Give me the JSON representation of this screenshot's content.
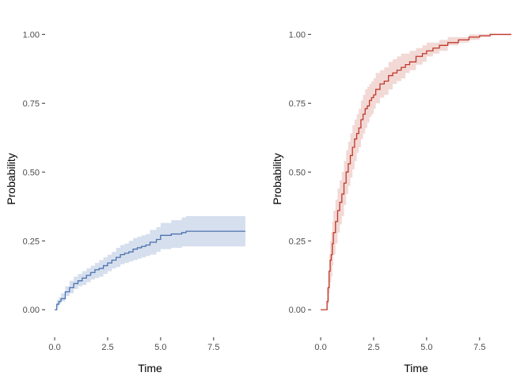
{
  "chart_data": [
    {
      "type": "line",
      "xlabel": "Time",
      "ylabel": "Probability",
      "xlim": [
        -0.45,
        9.45
      ],
      "ylim": [
        -0.1,
        1.05
      ],
      "x_ticks": [
        0.0,
        2.5,
        5.0,
        7.5
      ],
      "x_tick_labels": [
        "0.0",
        "2.5",
        "5.0",
        "7.5"
      ],
      "y_ticks": [
        0.0,
        0.25,
        0.5,
        0.75,
        1.0
      ],
      "y_tick_labels": [
        "0.00",
        "0.25",
        "0.50",
        "0.75",
        "1.00"
      ],
      "grid": false,
      "series": [
        {
          "color": "#4c72b0",
          "band_color": "#d6dfed",
          "step": true,
          "x": [
            0.0,
            0.1,
            0.2,
            0.3,
            0.5,
            0.7,
            0.9,
            1.1,
            1.3,
            1.5,
            1.7,
            1.9,
            2.1,
            2.3,
            2.5,
            2.7,
            2.9,
            3.1,
            3.3,
            3.5,
            3.7,
            3.9,
            4.1,
            4.3,
            4.5,
            4.8,
            5.0,
            5.5,
            6.0,
            6.2,
            9.0
          ],
          "y": [
            0.0,
            0.02,
            0.03,
            0.04,
            0.065,
            0.08,
            0.095,
            0.105,
            0.115,
            0.125,
            0.135,
            0.145,
            0.15,
            0.16,
            0.17,
            0.18,
            0.19,
            0.2,
            0.205,
            0.21,
            0.22,
            0.225,
            0.23,
            0.235,
            0.245,
            0.255,
            0.27,
            0.275,
            0.28,
            0.285,
            0.285
          ],
          "lower": [
            0.0,
            0.01,
            0.02,
            0.03,
            0.05,
            0.06,
            0.075,
            0.085,
            0.09,
            0.1,
            0.11,
            0.115,
            0.12,
            0.13,
            0.14,
            0.15,
            0.155,
            0.165,
            0.17,
            0.175,
            0.18,
            0.185,
            0.19,
            0.195,
            0.2,
            0.21,
            0.22,
            0.225,
            0.23,
            0.23,
            0.23
          ],
          "upper": [
            0.0,
            0.035,
            0.045,
            0.06,
            0.085,
            0.105,
            0.12,
            0.13,
            0.14,
            0.15,
            0.16,
            0.17,
            0.18,
            0.19,
            0.2,
            0.21,
            0.225,
            0.235,
            0.24,
            0.25,
            0.26,
            0.265,
            0.27,
            0.275,
            0.29,
            0.3,
            0.315,
            0.325,
            0.335,
            0.34,
            0.34
          ]
        }
      ]
    },
    {
      "type": "line",
      "xlabel": "Time",
      "ylabel": "Probability",
      "xlim": [
        -0.45,
        9.45
      ],
      "ylim": [
        -0.1,
        1.05
      ],
      "x_ticks": [
        0.0,
        2.5,
        5.0,
        7.5
      ],
      "x_tick_labels": [
        "0.0",
        "2.5",
        "5.0",
        "7.5"
      ],
      "y_ticks": [
        0.0,
        0.25,
        0.5,
        0.75,
        1.0
      ],
      "y_tick_labels": [
        "0.00",
        "0.25",
        "0.50",
        "0.75",
        "1.00"
      ],
      "grid": false,
      "series": [
        {
          "color": "#c0392b",
          "band_color": "#f2d9d6",
          "step": true,
          "x": [
            0.0,
            0.3,
            0.35,
            0.4,
            0.45,
            0.5,
            0.55,
            0.6,
            0.7,
            0.8,
            0.9,
            1.0,
            1.1,
            1.2,
            1.3,
            1.4,
            1.5,
            1.6,
            1.7,
            1.8,
            1.9,
            2.0,
            2.1,
            2.2,
            2.3,
            2.4,
            2.5,
            2.6,
            2.8,
            3.0,
            3.2,
            3.4,
            3.6,
            3.8,
            4.0,
            4.2,
            4.5,
            4.8,
            5.0,
            5.3,
            5.6,
            6.0,
            6.5,
            7.0,
            7.5,
            8.0,
            9.0
          ],
          "y": [
            0.0,
            0.03,
            0.08,
            0.14,
            0.18,
            0.2,
            0.24,
            0.28,
            0.32,
            0.36,
            0.39,
            0.42,
            0.46,
            0.5,
            0.53,
            0.56,
            0.59,
            0.62,
            0.64,
            0.66,
            0.69,
            0.71,
            0.73,
            0.74,
            0.76,
            0.77,
            0.78,
            0.8,
            0.82,
            0.83,
            0.85,
            0.86,
            0.87,
            0.88,
            0.89,
            0.9,
            0.92,
            0.93,
            0.94,
            0.95,
            0.96,
            0.97,
            0.98,
            0.99,
            0.995,
            1.0,
            1.0
          ],
          "lower": [
            0.0,
            0.0,
            0.02,
            0.06,
            0.1,
            0.12,
            0.16,
            0.2,
            0.24,
            0.28,
            0.31,
            0.34,
            0.38,
            0.42,
            0.45,
            0.48,
            0.51,
            0.54,
            0.57,
            0.59,
            0.62,
            0.64,
            0.66,
            0.68,
            0.7,
            0.71,
            0.73,
            0.75,
            0.77,
            0.78,
            0.8,
            0.82,
            0.83,
            0.84,
            0.86,
            0.87,
            0.89,
            0.9,
            0.92,
            0.93,
            0.94,
            0.96,
            0.97,
            0.98,
            0.99,
            0.995,
            1.0
          ],
          "upper": [
            0.0,
            0.08,
            0.14,
            0.2,
            0.25,
            0.28,
            0.32,
            0.36,
            0.4,
            0.44,
            0.47,
            0.5,
            0.54,
            0.58,
            0.61,
            0.64,
            0.67,
            0.69,
            0.71,
            0.73,
            0.76,
            0.78,
            0.8,
            0.81,
            0.82,
            0.83,
            0.84,
            0.86,
            0.87,
            0.88,
            0.9,
            0.91,
            0.92,
            0.93,
            0.93,
            0.94,
            0.95,
            0.96,
            0.97,
            0.97,
            0.98,
            0.99,
            0.99,
            1.0,
            1.0,
            1.0,
            1.0
          ]
        }
      ]
    }
  ]
}
